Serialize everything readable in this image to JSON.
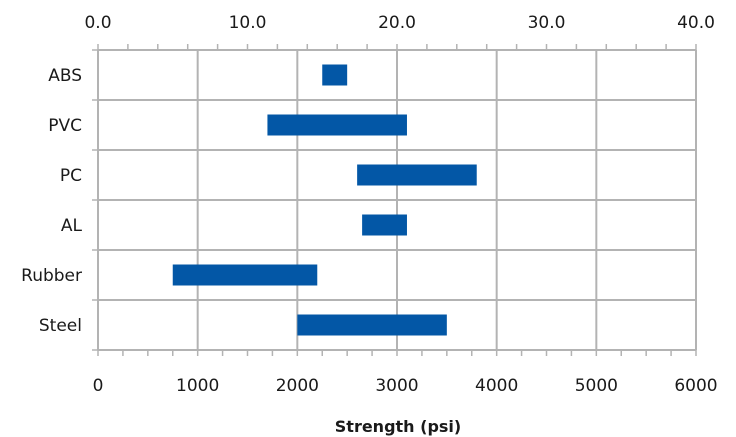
{
  "chart_data": {
    "type": "bar",
    "orientation": "horizontal",
    "bar_style": "floating-range",
    "categories": [
      "ABS",
      "PVC",
      "PC",
      "AL",
      "Rubber",
      "Steel"
    ],
    "series": [
      {
        "ranges": [
          [
            2250,
            2500
          ],
          [
            1700,
            3100
          ],
          [
            2600,
            3800
          ],
          [
            2650,
            3100
          ],
          [
            750,
            2200
          ],
          [
            2000,
            3500
          ]
        ]
      }
    ],
    "xlabel": "Strength (psi)",
    "xlim": [
      0,
      6000
    ],
    "x_ticks": [
      "0",
      "1000",
      "2000",
      "3000",
      "4000",
      "5000",
      "6000"
    ],
    "secondary_xlim": [
      0,
      40
    ],
    "secondary_x_ticks": [
      "0.0",
      "10.0",
      "20.0",
      "30.0",
      "40.0"
    ],
    "grid": true,
    "colors": {
      "bar": "#0357a6",
      "grid": "#b3b3b3"
    }
  }
}
